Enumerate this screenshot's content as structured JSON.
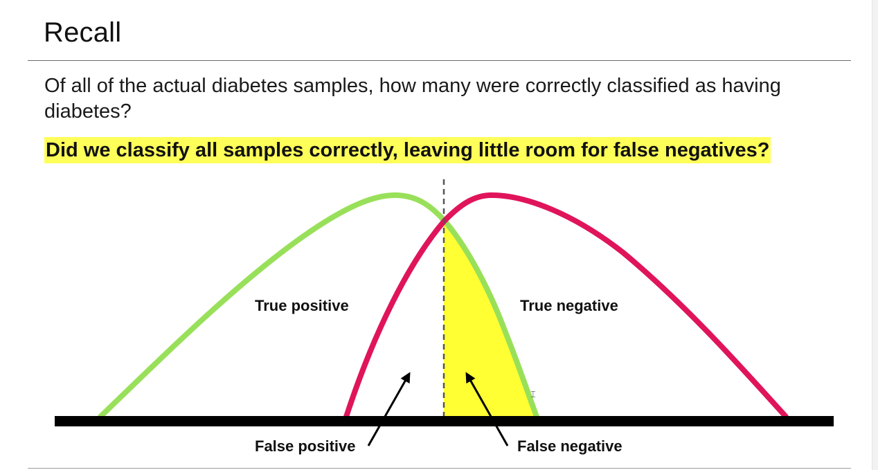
{
  "slide": {
    "title": "Recall",
    "body": "Of all of the actual diabetes samples, how many were correctly classified as having diabetes?",
    "highlight": "Did we classify all samples correctly, leaving little room for false negatives?"
  },
  "diagram": {
    "labels": {
      "true_positive": "True positive",
      "true_negative": "True negative",
      "false_positive": "False positive",
      "false_negative": "False negative"
    },
    "colors": {
      "positive_curve": "#99e05a",
      "negative_curve": "#e0145a",
      "false_negative_fill": "#ffff33",
      "baseline": "#000000",
      "threshold": "#555555"
    }
  },
  "icons": {
    "cursor": "text-cursor-icon"
  }
}
